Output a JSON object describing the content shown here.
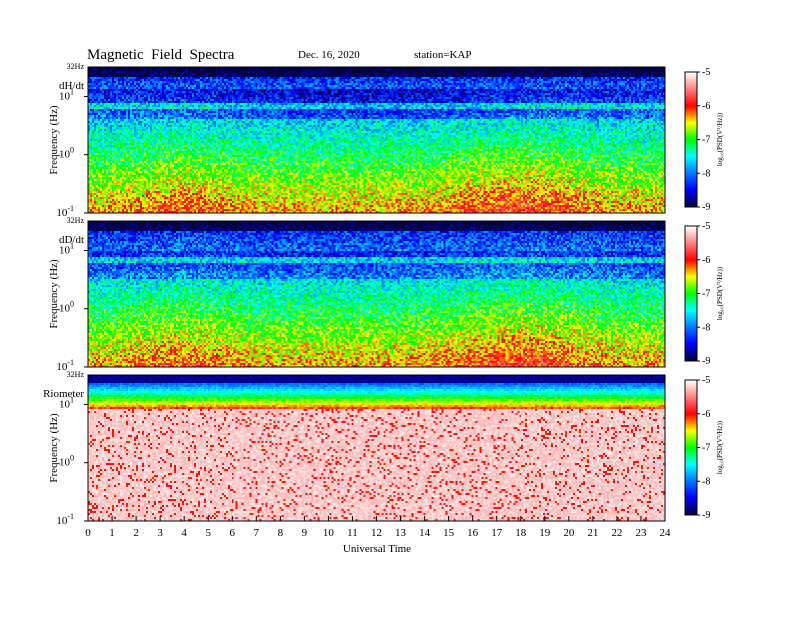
{
  "header": {
    "title": "Magnetic  Field  Spectra",
    "date": "Dec. 16, 2020",
    "station": "station=KAP"
  },
  "chart_data": {
    "type": "heatmap",
    "xlabel": "Universal Time",
    "x_ticks": [
      "0",
      "1",
      "2",
      "3",
      "4",
      "5",
      "6",
      "7",
      "8",
      "9",
      "10",
      "11",
      "12",
      "13",
      "14",
      "15",
      "16",
      "17",
      "18",
      "19",
      "20",
      "21",
      "22",
      "23",
      "24"
    ],
    "xlim": [
      0,
      24
    ],
    "freq_top_label": "32Hz",
    "y_tick_labels": [
      {
        "base": "10",
        "exp": "1",
        "value": 10
      },
      {
        "base": "10",
        "exp": "0",
        "value": 1
      },
      {
        "base": "10",
        "exp": "-1",
        "value": 0.1
      }
    ],
    "ylim_hz": [
      0.1,
      32
    ],
    "y_scale": "log",
    "colorbar": {
      "label": "log₁₀(PSD(V²/Hz))",
      "ticks": [
        "-5",
        "-6",
        "-7",
        "-8",
        "-9"
      ],
      "range": [
        -9,
        -5
      ],
      "colors": [
        "#ffffff",
        "#ff0000",
        "#ffff00",
        "#00ff00",
        "#00ffff",
        "#0000ff",
        "#000040"
      ]
    },
    "panels": [
      {
        "name": "dH/dt",
        "ylabel": "Frequency  (Hz)"
      },
      {
        "name": "dD/dt",
        "ylabel": "Frequency  (Hz)"
      },
      {
        "name": "Riometer",
        "ylabel": "Frequency  (Hz)"
      }
    ]
  }
}
